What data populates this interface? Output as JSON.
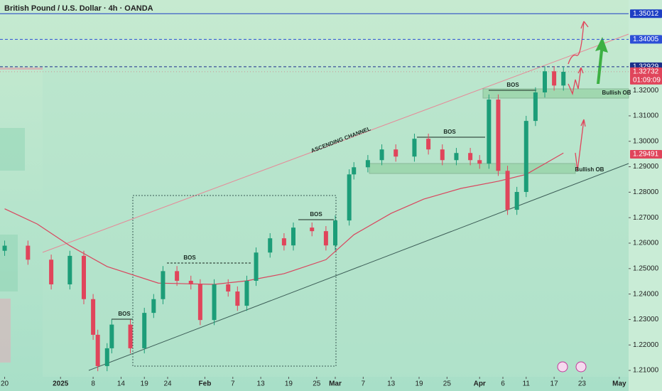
{
  "chart_data": {
    "type": "candlestick",
    "title": "British Pound / U.S. Dollar · 4h · OANDA",
    "xlim": [
      -1,
      134
    ],
    "ylim": [
      1.2075,
      1.3555
    ],
    "xticks": [
      {
        "value": 0,
        "label": "20"
      },
      {
        "value": 12,
        "label": "2025"
      },
      {
        "value": 19,
        "label": "8"
      },
      {
        "value": 25,
        "label": "14"
      },
      {
        "value": 30,
        "label": "19"
      },
      {
        "value": 35,
        "label": "24"
      },
      {
        "value": 43,
        "label": "Feb"
      },
      {
        "value": 49,
        "label": "7"
      },
      {
        "value": 55,
        "label": "13"
      },
      {
        "value": 61,
        "label": "19"
      },
      {
        "value": 67,
        "label": "25"
      },
      {
        "value": 71,
        "label": "Mar"
      },
      {
        "value": 77,
        "label": "7"
      },
      {
        "value": 83,
        "label": "13"
      },
      {
        "value": 89,
        "label": "19"
      },
      {
        "value": 95,
        "label": "25"
      },
      {
        "value": 102,
        "label": "Apr"
      },
      {
        "value": 107,
        "label": "6"
      },
      {
        "value": 112,
        "label": "11"
      },
      {
        "value": 118,
        "label": "17"
      },
      {
        "value": 124,
        "label": "23"
      },
      {
        "value": 132,
        "label": "May"
      }
    ],
    "yticks": [
      {
        "value": 1.21,
        "label": "1.21000"
      },
      {
        "value": 1.22,
        "label": "1.22000"
      },
      {
        "value": 1.23,
        "label": "1.23000"
      },
      {
        "value": 1.24,
        "label": "1.24000"
      },
      {
        "value": 1.25,
        "label": "1.25000"
      },
      {
        "value": 1.26,
        "label": "1.26000"
      },
      {
        "value": 1.27,
        "label": "1.27000"
      },
      {
        "value": 1.28,
        "label": "1.28000"
      },
      {
        "value": 1.29,
        "label": "1.29000"
      },
      {
        "value": 1.3,
        "label": "1.30000"
      },
      {
        "value": 1.31,
        "label": "1.31000"
      },
      {
        "value": 1.32,
        "label": "1.32000"
      }
    ],
    "up_color": "#1c9d78",
    "down_color": "#e0455b",
    "series": [
      {
        "x": [
          0,
          5,
          10,
          14,
          17,
          19,
          20,
          22,
          23,
          27,
          30,
          32,
          34,
          37,
          40,
          42,
          45,
          48,
          50,
          52,
          54,
          57,
          60,
          62,
          66,
          69,
          71,
          74,
          75,
          78,
          81,
          84,
          88,
          91,
          94,
          97,
          100,
          102,
          104,
          106,
          108,
          110,
          112,
          114,
          116,
          118,
          120
        ],
        "open": [
          1.257,
          1.259,
          1.2535,
          1.2438,
          1.255,
          1.238,
          1.224,
          1.2117,
          1.2187,
          1.228,
          1.2187,
          1.2326,
          1.238,
          1.249,
          1.2452,
          1.2438,
          1.2298,
          1.2438,
          1.241,
          1.2354,
          1.2452,
          1.2563,
          1.2619,
          1.2591,
          1.2661,
          1.2647,
          1.2591,
          1.2689,
          1.287,
          1.2898,
          1.2926,
          1.2968,
          1.294,
          1.301,
          1.2968,
          1.2926,
          1.2954,
          1.2926,
          1.2912,
          1.3164,
          1.2884,
          1.2731,
          1.2801,
          1.308,
          1.3192,
          1.3275,
          1.3219
        ],
        "high": [
          1.261,
          1.261,
          1.2555,
          1.257,
          1.257,
          1.24,
          1.226,
          1.2207,
          1.23,
          1.23,
          1.2346,
          1.24,
          1.251,
          1.251,
          1.2472,
          1.2458,
          1.2458,
          1.2458,
          1.243,
          1.2472,
          1.2583,
          1.2639,
          1.2639,
          1.2681,
          1.2681,
          1.2667,
          1.2709,
          1.289,
          1.2918,
          1.2946,
          1.2988,
          1.2988,
          1.303,
          1.303,
          1.2988,
          1.2974,
          1.2974,
          1.2946,
          1.3184,
          1.3184,
          1.2904,
          1.2821,
          1.31,
          1.3212,
          1.3295,
          1.3295,
          1.3293
        ],
        "low": [
          1.255,
          1.2515,
          1.2418,
          1.2418,
          1.236,
          1.222,
          1.2097,
          1.2097,
          1.2167,
          1.2167,
          1.2167,
          1.2306,
          1.236,
          1.2432,
          1.2418,
          1.2278,
          1.2278,
          1.239,
          1.2334,
          1.2334,
          1.2432,
          1.2543,
          1.2571,
          1.2571,
          1.2627,
          1.2571,
          1.2571,
          1.2669,
          1.285,
          1.2878,
          1.2906,
          1.292,
          1.292,
          1.2948,
          1.2906,
          1.2906,
          1.2906,
          1.2892,
          1.2892,
          1.2864,
          1.2711,
          1.2711,
          1.2781,
          1.306,
          1.3172,
          1.3199,
          1.3199
        ],
        "close": [
          1.259,
          1.2535,
          1.2438,
          1.255,
          1.238,
          1.224,
          1.2117,
          1.2187,
          1.228,
          1.2187,
          1.2326,
          1.238,
          1.249,
          1.2452,
          1.2438,
          1.2298,
          1.2438,
          1.241,
          1.2354,
          1.2452,
          1.2563,
          1.2619,
          1.2591,
          1.2661,
          1.2647,
          1.2591,
          1.2689,
          1.287,
          1.2898,
          1.2926,
          1.2968,
          1.294,
          1.301,
          1.2968,
          1.2926,
          1.2954,
          1.2926,
          1.2912,
          1.3164,
          1.2884,
          1.2731,
          1.2801,
          1.308,
          1.3192,
          1.3275,
          1.3219,
          1.3273
        ]
      }
    ],
    "moving_average": {
      "color": "#d9465e",
      "x": [
        0,
        7,
        14,
        22,
        33,
        45,
        52,
        60,
        69,
        75,
        83,
        90,
        98,
        106,
        112,
        120
      ],
      "values": [
        1.2735,
        1.2675,
        1.259,
        1.2508,
        1.2443,
        1.2438,
        1.2452,
        1.248,
        1.2535,
        1.2633,
        1.2717,
        1.2773,
        1.2815,
        1.2843,
        1.287,
        1.2954
      ]
    },
    "levels": [
      {
        "value": 1.35012,
        "color": "#1e3fc4"
      },
      {
        "value": 1.34005,
        "color": "#2d4fd6"
      },
      {
        "value": 1.32929,
        "color": "#1b2f8a"
      },
      {
        "value": 1.32732,
        "color": "#e0455b"
      },
      {
        "value": 1.29491,
        "color": "#e0455b"
      }
    ],
    "countdown": "01:09:09",
    "annotations": [
      "ASCENDING CHANNEL",
      "BOS",
      "BOS",
      "BOS",
      "BOS",
      "BOS",
      "Bullish OB",
      "Bullish OB"
    ]
  }
}
